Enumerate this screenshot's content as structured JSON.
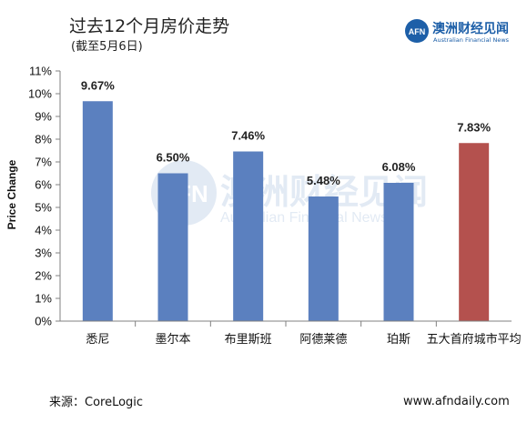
{
  "header": {
    "title": "过去12个月房价走势",
    "subtitle": "(截至5月6日)"
  },
  "brand": {
    "logo_text": "AFN",
    "name_cn": "澳洲财经见闻",
    "name_en": "Australian Financial News",
    "color": "#1d5fa8"
  },
  "watermark": {
    "logo_text": "AFN",
    "name_cn": "澳洲财经见闻",
    "name_en": "Australian Financial News"
  },
  "footer": {
    "source": "来源：CoreLogic",
    "site": "www.afndaily.com"
  },
  "chart_data": {
    "type": "bar",
    "categories": [
      "悉尼",
      "墨尔本",
      "布里斯班",
      "阿德莱德",
      "珀斯",
      "五大首府城市平均"
    ],
    "values": [
      9.67,
      6.5,
      7.46,
      5.48,
      6.08,
      7.83
    ],
    "data_labels": [
      "9.67%",
      "6.50%",
      "7.46%",
      "5.48%",
      "6.08%",
      "7.83%"
    ],
    "colors": [
      "#5b80bf",
      "#5b80bf",
      "#5b80bf",
      "#5b80bf",
      "#5b80bf",
      "#b4514e"
    ],
    "ylabel": "Price Change",
    "ylim": [
      0,
      11
    ],
    "yticks": [
      "0%",
      "1%",
      "2%",
      "3%",
      "4%",
      "5%",
      "6%",
      "7%",
      "8%",
      "9%",
      "10%",
      "11%"
    ],
    "grid": false,
    "legend": "none"
  }
}
